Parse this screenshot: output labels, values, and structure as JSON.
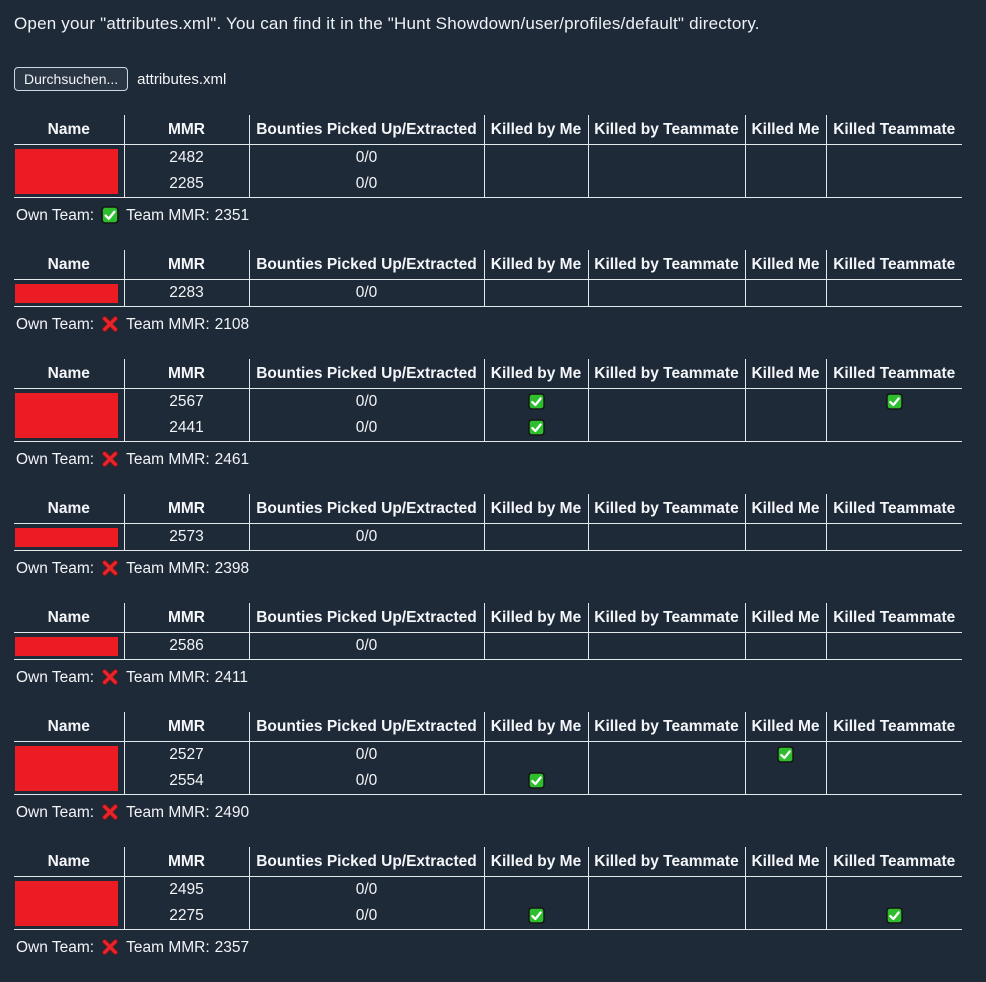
{
  "page": {
    "instruction": "Open your \"attributes.xml\". You can find it in the \"Hunt Showdown/user/profiles/default\" directory.",
    "file_input": {
      "button_label": "Durchsuchen...",
      "filename": "attributes.xml"
    }
  },
  "labels": {
    "own_team": "Own Team:",
    "team_mmr": "Team MMR:"
  },
  "icons": {
    "kill_flag": "checkmark-icon",
    "own_team_true": "checkmark-icon",
    "own_team_false": "cross-icon"
  },
  "colors": {
    "background": "#1f2a38",
    "table_border": "#e3e8ee",
    "redaction_red": "#ec1c24",
    "check_green": "#2ebd2e",
    "check_border": "#151515",
    "cross_red": "#e8252b",
    "cross_outline": "#8c1114",
    "text": "#f2f4f7"
  },
  "table": {
    "columns": [
      "Name",
      "MMR",
      "Bounties Picked Up/Extracted",
      "Killed by Me",
      "Killed by Teammate",
      "Killed Me",
      "Killed Teammate"
    ]
  },
  "teams": [
    {
      "own_team": true,
      "team_mmr": "2351",
      "rows": [
        {
          "mmr": "2482",
          "bounties": "0/0",
          "killed_by_me": false,
          "killed_by_teammate": false,
          "killed_me": false,
          "killed_teammate": false
        },
        {
          "mmr": "2285",
          "bounties": "0/0",
          "killed_by_me": false,
          "killed_by_teammate": false,
          "killed_me": false,
          "killed_teammate": false
        }
      ]
    },
    {
      "own_team": false,
      "team_mmr": "2108",
      "rows": [
        {
          "mmr": "2283",
          "bounties": "0/0",
          "killed_by_me": false,
          "killed_by_teammate": false,
          "killed_me": false,
          "killed_teammate": false
        }
      ]
    },
    {
      "own_team": false,
      "team_mmr": "2461",
      "rows": [
        {
          "mmr": "2567",
          "bounties": "0/0",
          "killed_by_me": true,
          "killed_by_teammate": false,
          "killed_me": false,
          "killed_teammate": true
        },
        {
          "mmr": "2441",
          "bounties": "0/0",
          "killed_by_me": true,
          "killed_by_teammate": false,
          "killed_me": false,
          "killed_teammate": false
        }
      ]
    },
    {
      "own_team": false,
      "team_mmr": "2398",
      "rows": [
        {
          "mmr": "2573",
          "bounties": "0/0",
          "killed_by_me": false,
          "killed_by_teammate": false,
          "killed_me": false,
          "killed_teammate": false
        }
      ]
    },
    {
      "own_team": false,
      "team_mmr": "2411",
      "rows": [
        {
          "mmr": "2586",
          "bounties": "0/0",
          "killed_by_me": false,
          "killed_by_teammate": false,
          "killed_me": false,
          "killed_teammate": false
        }
      ]
    },
    {
      "own_team": false,
      "team_mmr": "2490",
      "rows": [
        {
          "mmr": "2527",
          "bounties": "0/0",
          "killed_by_me": false,
          "killed_by_teammate": false,
          "killed_me": true,
          "killed_teammate": false
        },
        {
          "mmr": "2554",
          "bounties": "0/0",
          "killed_by_me": true,
          "killed_by_teammate": false,
          "killed_me": false,
          "killed_teammate": false
        }
      ]
    },
    {
      "own_team": false,
      "team_mmr": "2357",
      "rows": [
        {
          "mmr": "2495",
          "bounties": "0/0",
          "killed_by_me": false,
          "killed_by_teammate": false,
          "killed_me": false,
          "killed_teammate": false
        },
        {
          "mmr": "2275",
          "bounties": "0/0",
          "killed_by_me": true,
          "killed_by_teammate": false,
          "killed_me": false,
          "killed_teammate": true
        }
      ]
    }
  ]
}
